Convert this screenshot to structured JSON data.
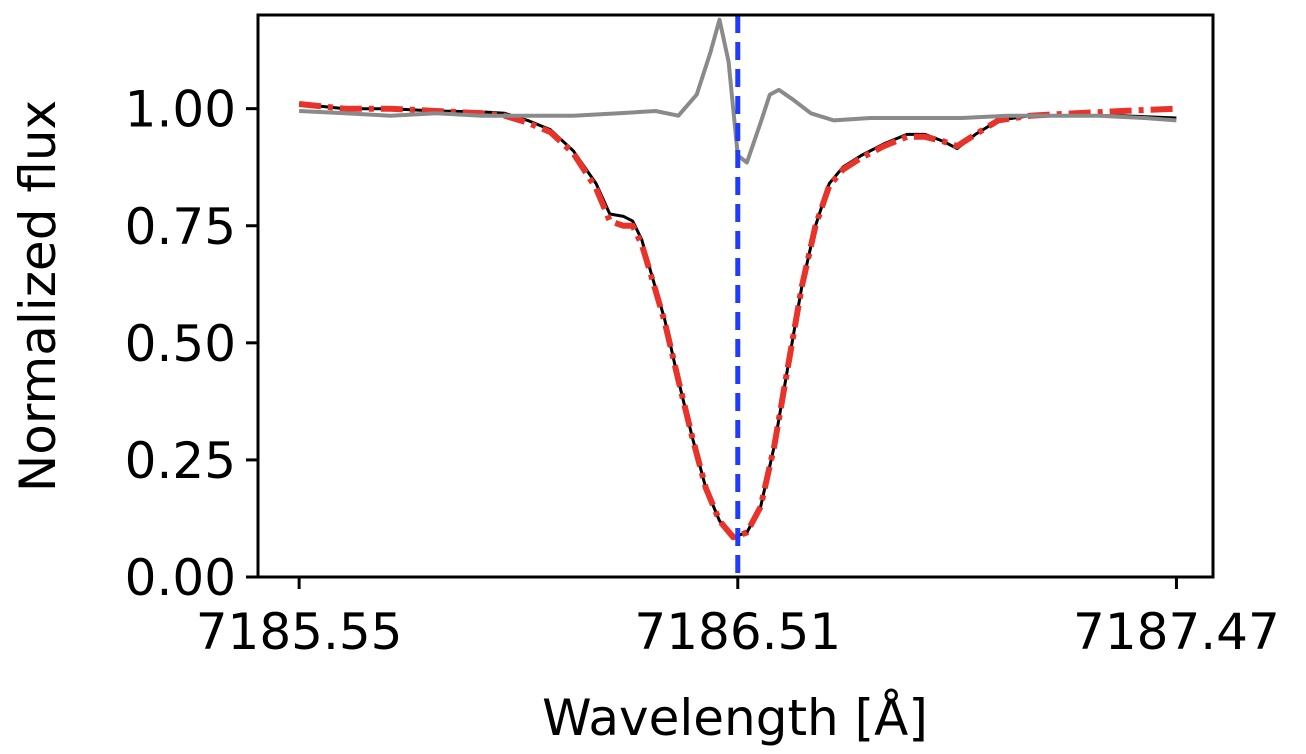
{
  "chart_data": {
    "type": "line",
    "title": "",
    "xlabel": "Wavelength [Å]",
    "ylabel": "Normalized flux",
    "xlim": [
      7185.46,
      7187.55
    ],
    "ylim": [
      0.0,
      1.2
    ],
    "x_ticks": [
      7185.55,
      7186.51,
      7187.47
    ],
    "x_tick_labels": [
      "7185.55",
      "7186.51",
      "7187.47"
    ],
    "y_ticks": [
      0.0,
      0.25,
      0.5,
      0.75,
      1.0
    ],
    "y_tick_labels": [
      "0.00",
      "0.25",
      "0.50",
      "0.75",
      "1.00"
    ],
    "grid": false,
    "legend": "none",
    "vertical_line": {
      "x": 7186.51,
      "color": "#1f3bff",
      "style": "dashed"
    },
    "series": [
      {
        "color": "#000000",
        "style": "solid",
        "points": [
          [
            7185.55,
            1.01
          ],
          [
            7185.65,
            1.0
          ],
          [
            7185.75,
            1.0
          ],
          [
            7185.85,
            0.995
          ],
          [
            7185.95,
            0.993
          ],
          [
            7186.0,
            0.99
          ],
          [
            7186.05,
            0.975
          ],
          [
            7186.1,
            0.955
          ],
          [
            7186.15,
            0.91
          ],
          [
            7186.2,
            0.84
          ],
          [
            7186.23,
            0.775
          ],
          [
            7186.26,
            0.77
          ],
          [
            7186.28,
            0.76
          ],
          [
            7186.3,
            0.72
          ],
          [
            7186.32,
            0.65
          ],
          [
            7186.35,
            0.55
          ],
          [
            7186.38,
            0.42
          ],
          [
            7186.41,
            0.3
          ],
          [
            7186.44,
            0.19
          ],
          [
            7186.47,
            0.12
          ],
          [
            7186.5,
            0.085
          ],
          [
            7186.53,
            0.095
          ],
          [
            7186.56,
            0.15
          ],
          [
            7186.59,
            0.28
          ],
          [
            7186.62,
            0.45
          ],
          [
            7186.65,
            0.62
          ],
          [
            7186.68,
            0.75
          ],
          [
            7186.71,
            0.84
          ],
          [
            7186.74,
            0.875
          ],
          [
            7186.78,
            0.9
          ],
          [
            7186.83,
            0.925
          ],
          [
            7186.88,
            0.945
          ],
          [
            7186.92,
            0.945
          ],
          [
            7186.96,
            0.93
          ],
          [
            7186.99,
            0.915
          ],
          [
            7187.03,
            0.945
          ],
          [
            7187.08,
            0.975
          ],
          [
            7187.15,
            0.985
          ],
          [
            7187.25,
            0.985
          ],
          [
            7187.35,
            0.985
          ],
          [
            7187.47,
            0.98
          ]
        ]
      },
      {
        "color": "#e8322a",
        "style": "dashdot",
        "points": [
          [
            7185.55,
            1.01
          ],
          [
            7185.65,
            1.0
          ],
          [
            7185.75,
            1.0
          ],
          [
            7185.85,
            0.995
          ],
          [
            7185.95,
            0.99
          ],
          [
            7186.0,
            0.985
          ],
          [
            7186.05,
            0.97
          ],
          [
            7186.1,
            0.95
          ],
          [
            7186.15,
            0.905
          ],
          [
            7186.2,
            0.83
          ],
          [
            7186.23,
            0.76
          ],
          [
            7186.26,
            0.75
          ],
          [
            7186.28,
            0.75
          ],
          [
            7186.3,
            0.71
          ],
          [
            7186.32,
            0.645
          ],
          [
            7186.35,
            0.545
          ],
          [
            7186.38,
            0.42
          ],
          [
            7186.41,
            0.3
          ],
          [
            7186.44,
            0.19
          ],
          [
            7186.47,
            0.12
          ],
          [
            7186.5,
            0.085
          ],
          [
            7186.53,
            0.095
          ],
          [
            7186.56,
            0.15
          ],
          [
            7186.59,
            0.28
          ],
          [
            7186.62,
            0.45
          ],
          [
            7186.65,
            0.62
          ],
          [
            7186.68,
            0.75
          ],
          [
            7186.71,
            0.835
          ],
          [
            7186.74,
            0.87
          ],
          [
            7186.78,
            0.895
          ],
          [
            7186.83,
            0.92
          ],
          [
            7186.88,
            0.94
          ],
          [
            7186.92,
            0.94
          ],
          [
            7186.96,
            0.93
          ],
          [
            7186.99,
            0.92
          ],
          [
            7187.03,
            0.945
          ],
          [
            7187.08,
            0.975
          ],
          [
            7187.15,
            0.985
          ],
          [
            7187.25,
            0.99
          ],
          [
            7187.35,
            0.995
          ],
          [
            7187.47,
            1.0
          ]
        ]
      },
      {
        "color": "#8a8a8a",
        "style": "solid",
        "points": [
          [
            7185.55,
            0.995
          ],
          [
            7185.65,
            0.99
          ],
          [
            7185.75,
            0.985
          ],
          [
            7185.85,
            0.99
          ],
          [
            7185.95,
            0.985
          ],
          [
            7186.05,
            0.985
          ],
          [
            7186.15,
            0.985
          ],
          [
            7186.25,
            0.99
          ],
          [
            7186.33,
            0.995
          ],
          [
            7186.38,
            0.985
          ],
          [
            7186.42,
            1.03
          ],
          [
            7186.45,
            1.12
          ],
          [
            7186.47,
            1.19
          ],
          [
            7186.49,
            1.1
          ],
          [
            7186.51,
            0.9
          ],
          [
            7186.53,
            0.885
          ],
          [
            7186.56,
            0.97
          ],
          [
            7186.58,
            1.03
          ],
          [
            7186.6,
            1.04
          ],
          [
            7186.63,
            1.02
          ],
          [
            7186.67,
            0.99
          ],
          [
            7186.72,
            0.975
          ],
          [
            7186.8,
            0.98
          ],
          [
            7186.9,
            0.98
          ],
          [
            7187.0,
            0.98
          ],
          [
            7187.1,
            0.985
          ],
          [
            7187.2,
            0.985
          ],
          [
            7187.3,
            0.985
          ],
          [
            7187.4,
            0.98
          ],
          [
            7187.47,
            0.975
          ]
        ]
      }
    ]
  }
}
